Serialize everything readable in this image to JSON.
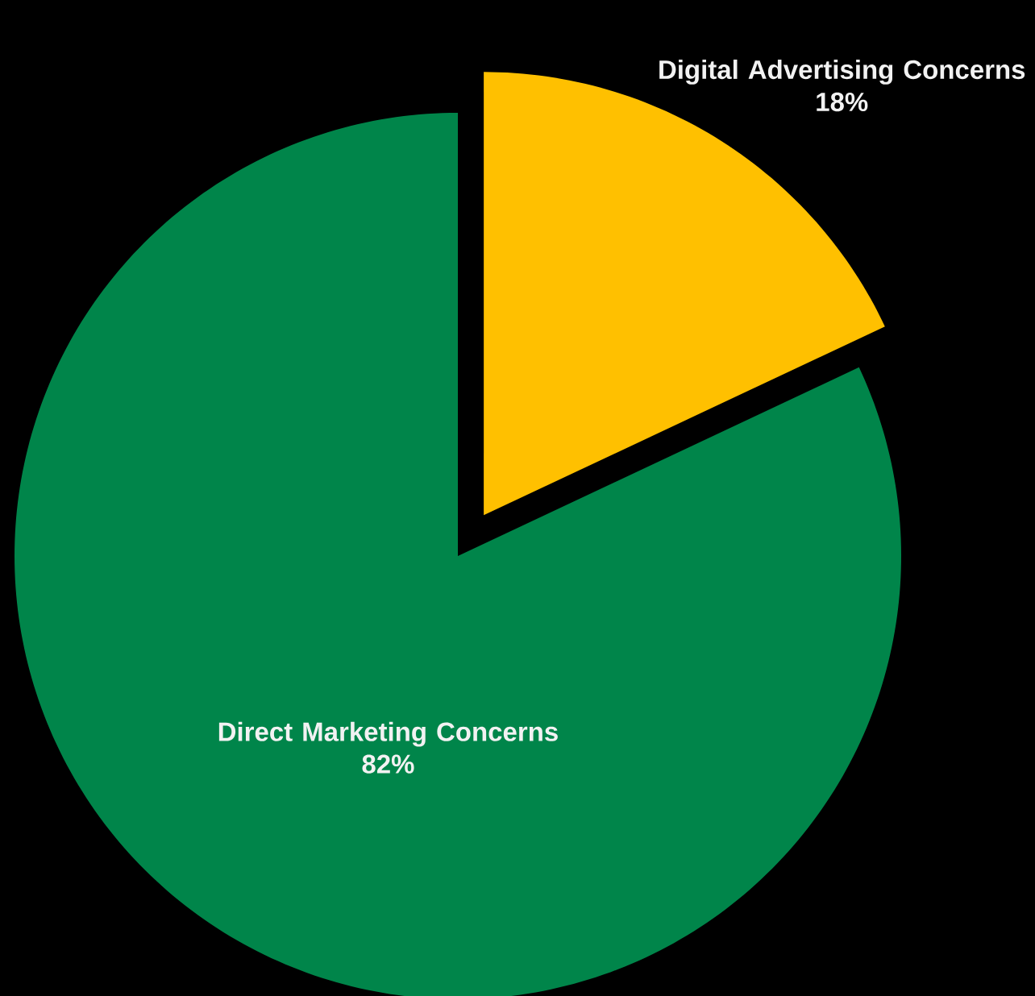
{
  "chart_data": {
    "type": "pie",
    "categories": [
      "Digital Advertising Concerns",
      "Direct Marketing Concerns"
    ],
    "values": [
      18,
      82
    ],
    "colors": [
      "#ffc000",
      "#00854a"
    ],
    "value_labels": [
      "18%",
      "82%"
    ]
  }
}
